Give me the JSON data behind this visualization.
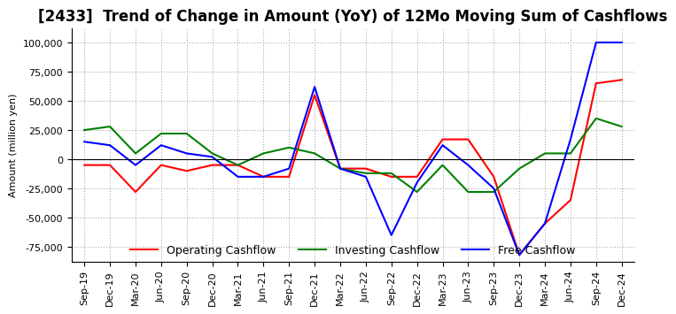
{
  "title": "[2433]  Trend of Change in Amount (YoY) of 12Mo Moving Sum of Cashflows",
  "ylabel": "Amount (million yen)",
  "ylim": [
    -87500,
    112500
  ],
  "yticks": [
    -75000,
    -50000,
    -25000,
    0,
    25000,
    50000,
    75000,
    100000
  ],
  "x_labels": [
    "Sep-19",
    "Dec-19",
    "Mar-20",
    "Jun-20",
    "Sep-20",
    "Dec-20",
    "Mar-21",
    "Jun-21",
    "Sep-21",
    "Dec-21",
    "Mar-22",
    "Jun-22",
    "Sep-22",
    "Dec-22",
    "Mar-23",
    "Jun-23",
    "Sep-23",
    "Dec-23",
    "Mar-24",
    "Jun-24",
    "Sep-24",
    "Dec-24"
  ],
  "operating": [
    -5000,
    -5000,
    -28000,
    -5000,
    -10000,
    -5000,
    -5000,
    -15000,
    -15000,
    55000,
    -8000,
    -8000,
    -15000,
    -15000,
    17000,
    17000,
    -15000,
    -82000,
    -55000,
    -35000,
    65000,
    68000
  ],
  "investing": [
    25000,
    28000,
    5000,
    22000,
    22000,
    5000,
    -5000,
    5000,
    10000,
    5000,
    -8000,
    -12000,
    -12000,
    -28000,
    -5000,
    -28000,
    -28000,
    -8000,
    5000,
    5000,
    35000,
    28000
  ],
  "free": [
    15000,
    12000,
    -5000,
    12000,
    5000,
    2000,
    -15000,
    -15000,
    -8000,
    62000,
    -8000,
    -15000,
    -65000,
    -20000,
    12000,
    -5000,
    -25000,
    -82000,
    -55000,
    17000,
    100000,
    100000
  ],
  "operating_color": "#FF0000",
  "investing_color": "#008000",
  "free_color": "#0000FF",
  "background_color": "#FFFFFF",
  "grid_color": "#AAAAAA",
  "title_fontsize": 12,
  "axis_fontsize": 8,
  "legend_fontsize": 9
}
